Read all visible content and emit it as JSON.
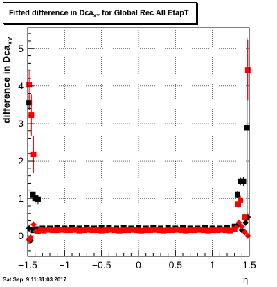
{
  "chart_data": {
    "type": "scatter",
    "title": "Fitted difference in Dca",
    "title_subscript": "XY",
    "title_suffix": " for Global Rec All EtapT",
    "ylabel": "difference in Dca",
    "ylabel_subscript": "XY",
    "xlabel": "η",
    "xlim": [
      -1.5,
      1.5
    ],
    "ylim": [
      -0.55,
      5.55
    ],
    "x_major_ticks": [
      -1.5,
      -1,
      -0.5,
      0,
      0.5,
      1,
      1.5
    ],
    "x_tick_labels": [
      "−1.5",
      "−1",
      "−0.5",
      "0",
      "0.5",
      "1",
      "1.5"
    ],
    "y_major_ticks": [
      0,
      1,
      2,
      3,
      4,
      5
    ],
    "y_tick_labels": [
      "0",
      "1",
      "2",
      "3",
      "4",
      "5"
    ],
    "grid": true,
    "series": [
      {
        "color": "#000000",
        "points": [
          {
            "x": -1.48,
            "y": 3.55,
            "e": 0.2,
            "m": "sq"
          },
          {
            "x": -1.48,
            "y": 0.2,
            "e": 0.1,
            "m": "di"
          },
          {
            "x": -1.46,
            "y": -0.12,
            "e": 0.08,
            "m": "di"
          },
          {
            "x": -1.43,
            "y": 1.1,
            "e": 0.15,
            "m": "sq"
          },
          {
            "x": -1.4,
            "y": 1.0,
            "e": 0.15,
            "m": "sq"
          },
          {
            "x": -1.36,
            "y": 0.97,
            "e": 0.12,
            "m": "sq"
          },
          {
            "x": -1.42,
            "y": 0.15,
            "e": 0.05,
            "m": "sq"
          },
          {
            "x": -1.38,
            "y": 0.18,
            "e": 0.04,
            "m": "sq"
          },
          {
            "x": -1.3,
            "y": 0.2,
            "e": 0.03,
            "m": "sq"
          },
          {
            "x": -1.2,
            "y": 0.2,
            "e": 0.02,
            "m": "sq"
          },
          {
            "x": -1.1,
            "y": 0.21,
            "e": 0.02,
            "m": "sq"
          },
          {
            "x": -1.0,
            "y": 0.2,
            "e": 0.02,
            "m": "sq"
          },
          {
            "x": -0.9,
            "y": 0.21,
            "e": 0.02,
            "m": "sq"
          },
          {
            "x": -0.8,
            "y": 0.2,
            "e": 0.02,
            "m": "sq"
          },
          {
            "x": -0.7,
            "y": 0.21,
            "e": 0.02,
            "m": "sq"
          },
          {
            "x": -0.6,
            "y": 0.2,
            "e": 0.02,
            "m": "sq"
          },
          {
            "x": -0.5,
            "y": 0.21,
            "e": 0.02,
            "m": "sq"
          },
          {
            "x": -0.4,
            "y": 0.21,
            "e": 0.02,
            "m": "sq"
          },
          {
            "x": -0.3,
            "y": 0.2,
            "e": 0.02,
            "m": "sq"
          },
          {
            "x": -0.2,
            "y": 0.21,
            "e": 0.02,
            "m": "sq"
          },
          {
            "x": -0.1,
            "y": 0.2,
            "e": 0.02,
            "m": "sq"
          },
          {
            "x": 0.0,
            "y": 0.21,
            "e": 0.02,
            "m": "sq"
          },
          {
            "x": 0.1,
            "y": 0.2,
            "e": 0.02,
            "m": "sq"
          },
          {
            "x": 0.2,
            "y": 0.21,
            "e": 0.02,
            "m": "sq"
          },
          {
            "x": 0.3,
            "y": 0.2,
            "e": 0.02,
            "m": "sq"
          },
          {
            "x": 0.4,
            "y": 0.21,
            "e": 0.02,
            "m": "sq"
          },
          {
            "x": 0.5,
            "y": 0.2,
            "e": 0.02,
            "m": "sq"
          },
          {
            "x": 0.6,
            "y": 0.21,
            "e": 0.02,
            "m": "sq"
          },
          {
            "x": 0.7,
            "y": 0.2,
            "e": 0.02,
            "m": "sq"
          },
          {
            "x": 0.8,
            "y": 0.2,
            "e": 0.02,
            "m": "sq"
          },
          {
            "x": 0.9,
            "y": 0.21,
            "e": 0.02,
            "m": "sq"
          },
          {
            "x": 1.0,
            "y": 0.2,
            "e": 0.02,
            "m": "sq"
          },
          {
            "x": 1.1,
            "y": 0.2,
            "e": 0.02,
            "m": "sq"
          },
          {
            "x": 1.2,
            "y": 0.21,
            "e": 0.03,
            "m": "sq"
          },
          {
            "x": 1.3,
            "y": 0.25,
            "e": 0.03,
            "m": "sq"
          },
          {
            "x": 1.35,
            "y": 0.3,
            "e": 0.04,
            "m": "di"
          },
          {
            "x": 1.4,
            "y": 0.15,
            "e": 0.05,
            "m": "di"
          },
          {
            "x": 1.45,
            "y": 0.35,
            "e": 0.08,
            "m": "di"
          },
          {
            "x": 1.34,
            "y": 1.1,
            "e": 0.1,
            "m": "sq"
          },
          {
            "x": 1.38,
            "y": 1.45,
            "e": 0.1,
            "m": "sq"
          },
          {
            "x": 1.42,
            "y": 1.45,
            "e": 0.12,
            "m": "sq"
          },
          {
            "x": 1.47,
            "y": 2.88,
            "e": 2.4,
            "m": "sq"
          },
          {
            "x": 1.48,
            "y": 0.5,
            "e": 0.1,
            "m": "di"
          }
        ]
      },
      {
        "color": "#ff0000",
        "points": [
          {
            "x": -1.48,
            "y": 4.03,
            "e": 0.4,
            "m": "sq"
          },
          {
            "x": -1.45,
            "y": 3.22,
            "e": 0.55,
            "m": "sq"
          },
          {
            "x": -1.42,
            "y": 2.17,
            "e": 0.5,
            "m": "sq"
          },
          {
            "x": -1.48,
            "y": -0.1,
            "e": 0.1,
            "m": "di"
          },
          {
            "x": -1.46,
            "y": -0.05,
            "e": 0.1,
            "m": "di"
          },
          {
            "x": -1.42,
            "y": 0.3,
            "e": 0.08,
            "m": "di"
          },
          {
            "x": -1.39,
            "y": 0.12,
            "e": 0.05,
            "m": "di"
          },
          {
            "x": -1.36,
            "y": 0.12,
            "e": 0.03,
            "m": "sq"
          },
          {
            "x": -1.32,
            "y": 0.15,
            "e": 0.03,
            "m": "sq"
          },
          {
            "x": -1.28,
            "y": 0.14,
            "e": 0.02,
            "m": "sq"
          },
          {
            "x": -1.22,
            "y": 0.16,
            "e": 0.02,
            "m": "sq"
          },
          {
            "x": -1.16,
            "y": 0.15,
            "e": 0.02,
            "m": "sq"
          },
          {
            "x": -1.1,
            "y": 0.15,
            "e": 0.02,
            "m": "sq"
          },
          {
            "x": -1.04,
            "y": 0.16,
            "e": 0.02,
            "m": "sq"
          },
          {
            "x": -0.98,
            "y": 0.15,
            "e": 0.02,
            "m": "sq"
          },
          {
            "x": -0.92,
            "y": 0.15,
            "e": 0.02,
            "m": "sq"
          },
          {
            "x": -0.86,
            "y": 0.16,
            "e": 0.02,
            "m": "sq"
          },
          {
            "x": -0.8,
            "y": 0.14,
            "e": 0.02,
            "m": "sq"
          },
          {
            "x": -0.74,
            "y": 0.15,
            "e": 0.02,
            "m": "sq"
          },
          {
            "x": -0.68,
            "y": 0.16,
            "e": 0.02,
            "m": "sq"
          },
          {
            "x": -0.62,
            "y": 0.15,
            "e": 0.02,
            "m": "sq"
          },
          {
            "x": -0.56,
            "y": 0.15,
            "e": 0.02,
            "m": "sq"
          },
          {
            "x": -0.5,
            "y": 0.14,
            "e": 0.02,
            "m": "sq"
          },
          {
            "x": -0.44,
            "y": 0.15,
            "e": 0.02,
            "m": "sq"
          },
          {
            "x": -0.38,
            "y": 0.16,
            "e": 0.02,
            "m": "sq"
          },
          {
            "x": -0.32,
            "y": 0.15,
            "e": 0.02,
            "m": "sq"
          },
          {
            "x": -0.26,
            "y": 0.14,
            "e": 0.02,
            "m": "sq"
          },
          {
            "x": -0.2,
            "y": 0.15,
            "e": 0.02,
            "m": "sq"
          },
          {
            "x": -0.14,
            "y": 0.15,
            "e": 0.02,
            "m": "sq"
          },
          {
            "x": -0.08,
            "y": 0.16,
            "e": 0.02,
            "m": "sq"
          },
          {
            "x": -0.02,
            "y": 0.15,
            "e": 0.02,
            "m": "sq"
          },
          {
            "x": 0.04,
            "y": 0.14,
            "e": 0.02,
            "m": "sq"
          },
          {
            "x": 0.1,
            "y": 0.15,
            "e": 0.02,
            "m": "sq"
          },
          {
            "x": 0.16,
            "y": 0.15,
            "e": 0.02,
            "m": "sq"
          },
          {
            "x": 0.22,
            "y": 0.16,
            "e": 0.02,
            "m": "sq"
          },
          {
            "x": 0.28,
            "y": 0.15,
            "e": 0.02,
            "m": "sq"
          },
          {
            "x": 0.34,
            "y": 0.14,
            "e": 0.02,
            "m": "sq"
          },
          {
            "x": 0.4,
            "y": 0.15,
            "e": 0.02,
            "m": "sq"
          },
          {
            "x": 0.46,
            "y": 0.15,
            "e": 0.02,
            "m": "sq"
          },
          {
            "x": 0.52,
            "y": 0.16,
            "e": 0.02,
            "m": "sq"
          },
          {
            "x": 0.58,
            "y": 0.15,
            "e": 0.02,
            "m": "sq"
          },
          {
            "x": 0.64,
            "y": 0.14,
            "e": 0.02,
            "m": "sq"
          },
          {
            "x": 0.7,
            "y": 0.15,
            "e": 0.02,
            "m": "sq"
          },
          {
            "x": 0.76,
            "y": 0.15,
            "e": 0.02,
            "m": "sq"
          },
          {
            "x": 0.82,
            "y": 0.16,
            "e": 0.02,
            "m": "sq"
          },
          {
            "x": 0.88,
            "y": 0.15,
            "e": 0.02,
            "m": "sq"
          },
          {
            "x": 0.94,
            "y": 0.14,
            "e": 0.02,
            "m": "sq"
          },
          {
            "x": 1.0,
            "y": 0.15,
            "e": 0.02,
            "m": "sq"
          },
          {
            "x": 1.06,
            "y": 0.15,
            "e": 0.02,
            "m": "sq"
          },
          {
            "x": 1.12,
            "y": 0.16,
            "e": 0.02,
            "m": "sq"
          },
          {
            "x": 1.18,
            "y": 0.15,
            "e": 0.02,
            "m": "sq"
          },
          {
            "x": 1.24,
            "y": 0.14,
            "e": 0.03,
            "m": "sq"
          },
          {
            "x": 1.3,
            "y": 0.18,
            "e": 0.03,
            "m": "sq"
          },
          {
            "x": 1.32,
            "y": 0.22,
            "e": 0.04,
            "m": "di"
          },
          {
            "x": 1.36,
            "y": 0.35,
            "e": 0.05,
            "m": "di"
          },
          {
            "x": 1.4,
            "y": 0.25,
            "e": 0.06,
            "m": "di"
          },
          {
            "x": 1.44,
            "y": 0.1,
            "e": 0.06,
            "m": "di"
          },
          {
            "x": 1.48,
            "y": 0.0,
            "e": 0.08,
            "m": "di"
          },
          {
            "x": 1.35,
            "y": 0.85,
            "e": 0.1,
            "m": "sq"
          },
          {
            "x": 1.38,
            "y": 0.95,
            "e": 0.12,
            "m": "sq"
          },
          {
            "x": 1.44,
            "y": 0.5,
            "e": 0.1,
            "m": "sq"
          },
          {
            "x": 1.48,
            "y": 4.42,
            "e": 0.8,
            "m": "sq"
          }
        ]
      }
    ]
  },
  "footer": {
    "timestamp": "Sat Sep  9 11:31:03 2017"
  }
}
